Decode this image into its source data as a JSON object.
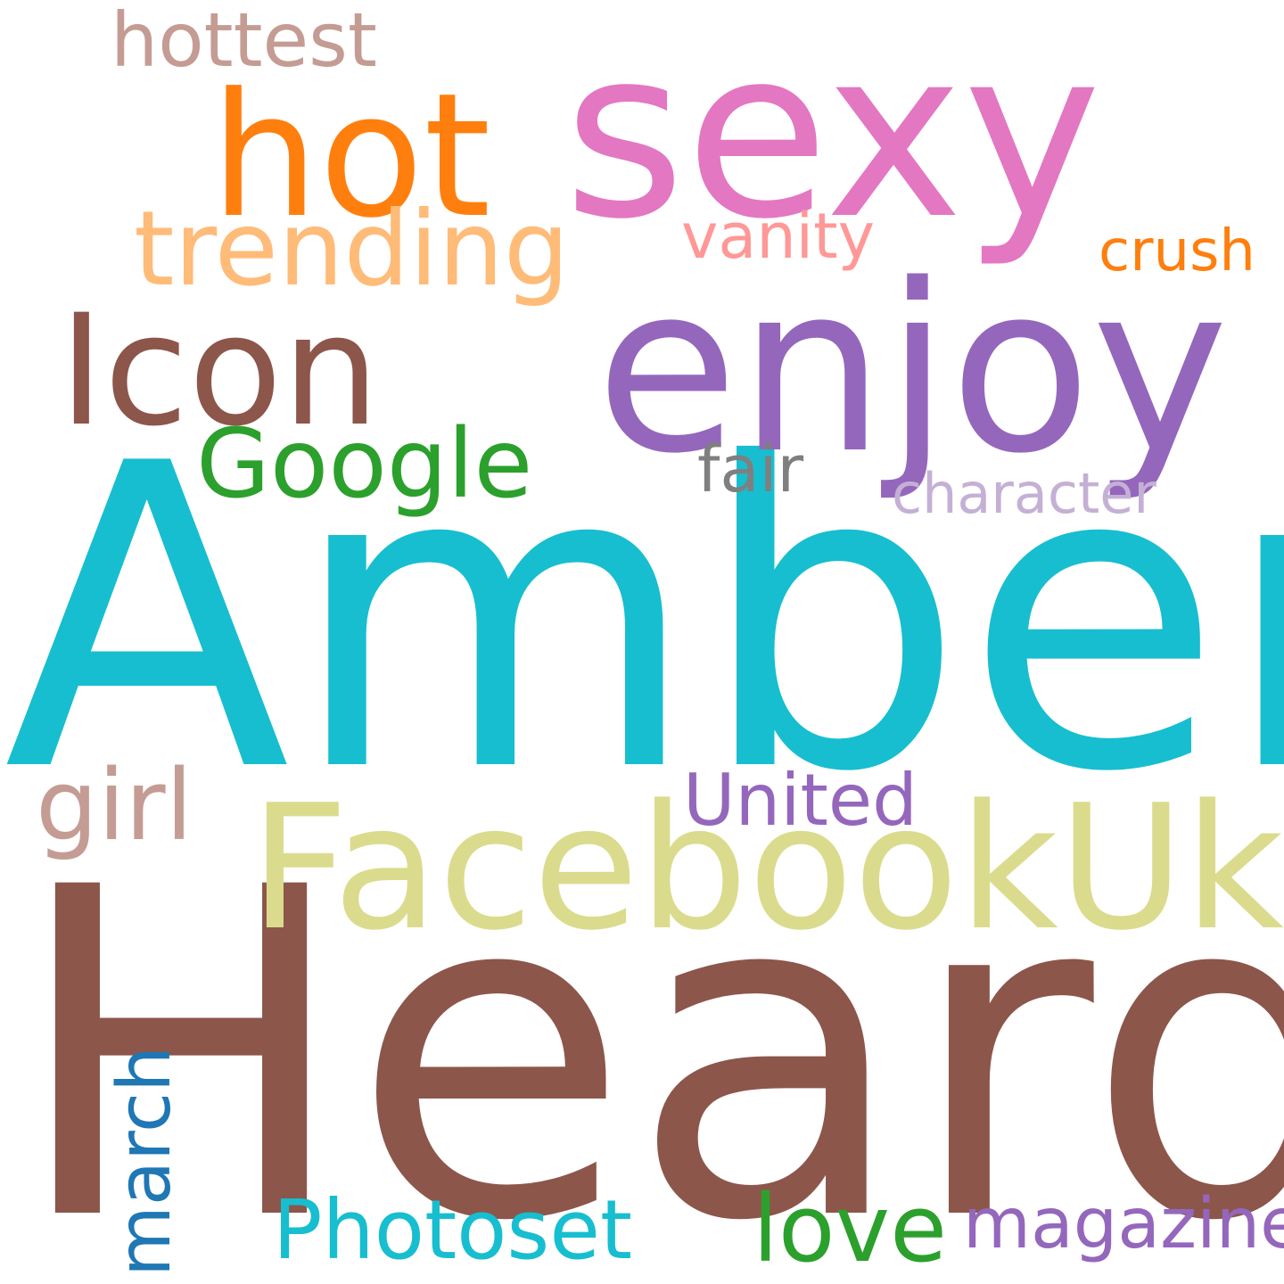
{
  "word_cloud": {
    "background": "#ffffff",
    "words": [
      {
        "id": "heard",
        "text": "Heard",
        "color": "#8c564b"
      },
      {
        "id": "amber",
        "text": "Amber",
        "color": "#17becf"
      },
      {
        "id": "sexy",
        "text": "sexy",
        "color": "#e377c2"
      },
      {
        "id": "enjoy",
        "text": "enjoy",
        "color": "#9467bd"
      },
      {
        "id": "facebookuk",
        "text": "FacebookUk",
        "color": "#dbdb8d"
      },
      {
        "id": "hot",
        "text": "hot",
        "color": "#ff7f0e"
      },
      {
        "id": "icon",
        "text": "Icon",
        "color": "#8c564b"
      },
      {
        "id": "trending",
        "text": "trending",
        "color": "#ffbb78"
      },
      {
        "id": "google",
        "text": "Google",
        "color": "#2ca02c"
      },
      {
        "id": "girl",
        "text": "girl",
        "color": "#c49c94"
      },
      {
        "id": "photoset",
        "text": "Photoset",
        "color": "#17becf"
      },
      {
        "id": "love",
        "text": "love",
        "color": "#2ca02c"
      },
      {
        "id": "united",
        "text": "United",
        "color": "#9467bd"
      },
      {
        "id": "hottest",
        "text": "hottest",
        "color": "#c49c94"
      },
      {
        "id": "vanity",
        "text": "vanity",
        "color": "#ff9896"
      },
      {
        "id": "magazine",
        "text": "magazine",
        "color": "#9467bd"
      },
      {
        "id": "march",
        "text": "march",
        "color": "#1f77b4"
      },
      {
        "id": "fair",
        "text": "fair",
        "color": "#7f7f7f"
      },
      {
        "id": "character",
        "text": "character",
        "color": "#c5b0d5"
      },
      {
        "id": "crush",
        "text": "crush",
        "color": "#ff7f0e"
      }
    ]
  }
}
